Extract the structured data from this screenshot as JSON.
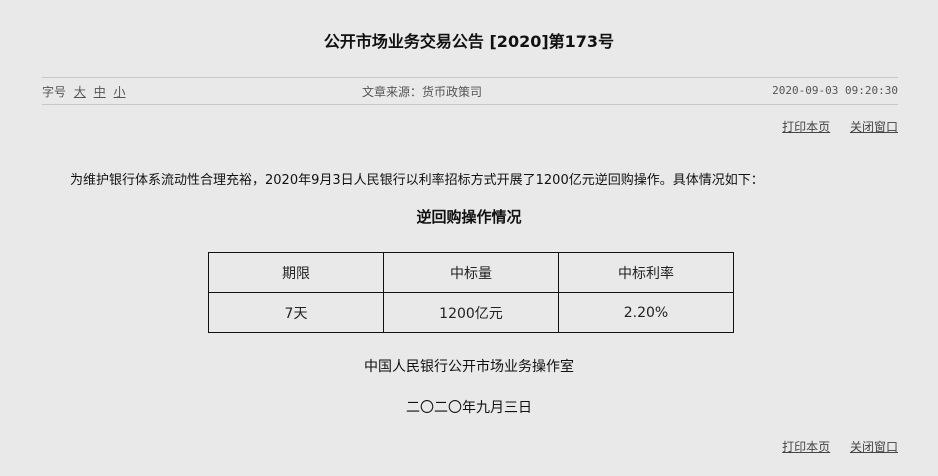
{
  "title": "公开市场业务交易公告 [2020]第173号",
  "meta": {
    "font_size_label": "字号",
    "font_sizes": [
      "大",
      "中",
      "小"
    ],
    "source": "文章来源：货币政策司",
    "datetime": "2020-09-03 09:20:30"
  },
  "links": {
    "print": "打印本页",
    "close": "关闭窗口"
  },
  "intro": "为维护银行体系流动性合理充裕，2020年9月3日人民银行以利率招标方式开展了1200亿元逆回购操作。具体情况如下：",
  "subtitle": "逆回购操作情况",
  "table": {
    "headers": [
      "期限",
      "中标量",
      "中标利率"
    ],
    "rows": [
      [
        "7天",
        "1200亿元",
        "2.20%"
      ]
    ]
  },
  "signature": {
    "org": "中国人民银行公开市场业务操作室",
    "date": "二〇二〇年九月三日"
  }
}
